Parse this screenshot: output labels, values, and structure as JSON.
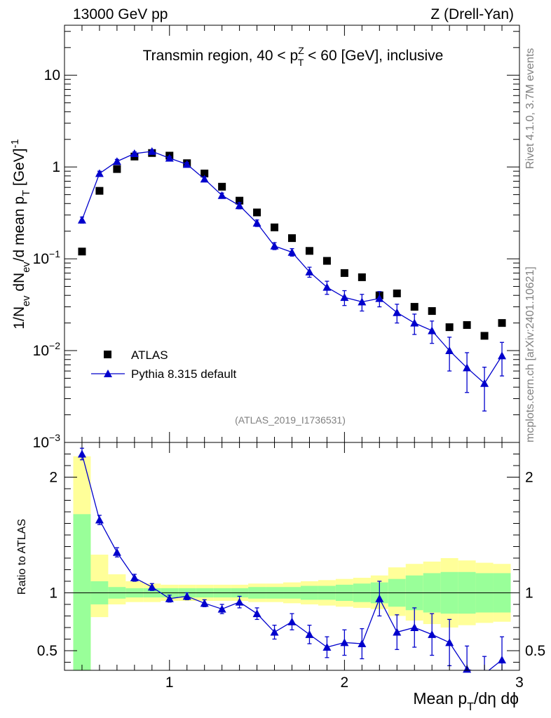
{
  "header": {
    "left": "13000 GeV pp",
    "right": "Z (Drell-Yan)"
  },
  "side": {
    "rivet": "Rivet 4.1.0,  3.7M events",
    "mcplots": "mcplots.cern.ch [arXiv:2401.10621]"
  },
  "chart_data": [
    {
      "type": "scatter",
      "panel": "main",
      "title": "Transmin region, 40 < p_T^Z < 60 [GeV], inclusive",
      "title_parts": [
        "Transmin region, 40 < p",
        "Z",
        "T",
        " < 60 [GeV], inclusive"
      ],
      "watermark": "(ATLAS_2019_I1736531)",
      "ylabel": "1/N_ev dN_ev/d mean p_T [GeV]^-1",
      "ylabel_parts": [
        "1/N",
        "ev",
        " dN",
        "ev",
        "/d mean p",
        "T",
        " [GeV]",
        "-1"
      ],
      "yscale": "log",
      "ylim": [
        0.001,
        35
      ],
      "xlim": [
        0.4,
        3.0
      ],
      "yticks": [
        {
          "value": 10,
          "label": "10"
        },
        {
          "value": 1,
          "label": "1"
        },
        {
          "value": 0.1,
          "label": "10",
          "exp": "−1"
        },
        {
          "value": 0.01,
          "label": "10",
          "exp": "−2"
        },
        {
          "value": 0.001,
          "label": "10",
          "exp": "−3"
        }
      ],
      "legend": {
        "position": "bottom-left",
        "entries": [
          {
            "label": "ATLAS",
            "marker": "square"
          },
          {
            "label": "Pythia 8.315 default",
            "marker": "triangle-line"
          }
        ]
      },
      "x": [
        0.5,
        0.6,
        0.7,
        0.8,
        0.9,
        1.0,
        1.1,
        1.2,
        1.3,
        1.4,
        1.5,
        1.6,
        1.7,
        1.8,
        1.9,
        2.0,
        2.1,
        2.2,
        2.3,
        2.4,
        2.5,
        2.6,
        2.7,
        2.8,
        2.9
      ],
      "series": [
        {
          "name": "ATLAS",
          "color": "#000000",
          "values": [
            0.12,
            0.55,
            0.95,
            1.3,
            1.42,
            1.33,
            1.1,
            0.85,
            0.61,
            0.43,
            0.32,
            0.22,
            0.168,
            0.122,
            0.095,
            0.07,
            0.063,
            0.04,
            0.042,
            0.03,
            0.027,
            0.018,
            0.019,
            0.0145,
            0.02
          ]
        },
        {
          "name": "Pythia 8.315 default",
          "color": "#0000cc",
          "values": [
            0.265,
            0.85,
            1.15,
            1.4,
            1.48,
            1.25,
            1.07,
            0.74,
            0.49,
            0.38,
            0.245,
            0.138,
            0.118,
            0.072,
            0.049,
            0.038,
            0.034,
            0.037,
            0.026,
            0.02,
            0.0165,
            0.01,
            0.0065,
            0.0044,
            0.0088
          ],
          "err_low": [
            0.02,
            0.05,
            0.06,
            0.06,
            0.06,
            0.05,
            0.05,
            0.04,
            0.03,
            0.03,
            0.02,
            0.012,
            0.011,
            0.009,
            0.008,
            0.007,
            0.007,
            0.007,
            0.006,
            0.005,
            0.0045,
            0.004,
            0.003,
            0.0022,
            0.0035
          ],
          "err_high": [
            0.02,
            0.05,
            0.06,
            0.06,
            0.06,
            0.05,
            0.05,
            0.04,
            0.03,
            0.03,
            0.02,
            0.012,
            0.011,
            0.009,
            0.008,
            0.007,
            0.007,
            0.007,
            0.006,
            0.005,
            0.0045,
            0.004,
            0.003,
            0.0022,
            0.0035
          ]
        }
      ]
    },
    {
      "type": "line",
      "panel": "ratio",
      "ylabel": "Ratio to ATLAS",
      "xlabel": "Mean p_T/dη dϕ",
      "xlabel_parts": [
        "Mean p",
        "T",
        "/dη dϕ"
      ],
      "xlim": [
        0.4,
        3.0
      ],
      "ylim": [
        0.33,
        2.3
      ],
      "xticks": [
        1,
        2,
        3
      ],
      "yticks": [
        0.5,
        1,
        2
      ],
      "reference_line": 1,
      "bins": [
        0.45,
        0.55,
        0.65,
        0.75,
        0.85,
        0.95,
        1.05,
        1.15,
        1.25,
        1.35,
        1.45,
        1.55,
        1.65,
        1.75,
        1.85,
        1.95,
        2.05,
        2.15,
        2.25,
        2.35,
        2.45,
        2.55,
        2.65,
        2.75,
        2.85,
        2.95
      ],
      "band_yellow_low": [
        0.0,
        0.79,
        0.9,
        0.92,
        0.92,
        0.93,
        0.93,
        0.93,
        0.93,
        0.93,
        0.92,
        0.92,
        0.91,
        0.9,
        0.89,
        0.88,
        0.87,
        0.86,
        0.8,
        0.76,
        0.73,
        0.7,
        0.72,
        0.74,
        0.75
      ],
      "band_yellow_high": [
        2.18,
        1.33,
        1.16,
        1.1,
        1.08,
        1.07,
        1.07,
        1.07,
        1.07,
        1.07,
        1.08,
        1.08,
        1.09,
        1.1,
        1.11,
        1.12,
        1.13,
        1.15,
        1.22,
        1.25,
        1.27,
        1.3,
        1.28,
        1.26,
        1.25
      ],
      "band_green_low": [
        0.0,
        0.9,
        0.95,
        0.96,
        0.96,
        0.96,
        0.96,
        0.96,
        0.96,
        0.96,
        0.95,
        0.95,
        0.95,
        0.94,
        0.94,
        0.93,
        0.92,
        0.91,
        0.88,
        0.85,
        0.83,
        0.82,
        0.82,
        0.83,
        0.83
      ],
      "band_green_high": [
        1.68,
        1.1,
        1.05,
        1.04,
        1.04,
        1.04,
        1.04,
        1.04,
        1.04,
        1.04,
        1.05,
        1.05,
        1.05,
        1.06,
        1.06,
        1.07,
        1.08,
        1.09,
        1.12,
        1.15,
        1.17,
        1.18,
        1.18,
        1.17,
        1.17
      ],
      "x": [
        0.5,
        0.6,
        0.7,
        0.8,
        0.9,
        1.0,
        1.1,
        1.2,
        1.3,
        1.4,
        1.5,
        1.6,
        1.7,
        1.8,
        1.9,
        2.0,
        2.1,
        2.2,
        2.3,
        2.4,
        2.5,
        2.6,
        2.7,
        2.8,
        2.9
      ],
      "series": [
        {
          "name": "Pythia 8.315 default / ATLAS",
          "color": "#0000cc",
          "values": [
            2.2,
            1.63,
            1.35,
            1.13,
            1.05,
            0.95,
            0.97,
            0.91,
            0.86,
            0.92,
            0.82,
            0.66,
            0.75,
            0.64,
            0.53,
            0.57,
            0.56,
            0.95,
            0.66,
            0.7,
            0.64,
            0.57,
            0.34,
            0.3,
            0.42
          ],
          "err": [
            0.05,
            0.04,
            0.04,
            0.03,
            0.03,
            0.03,
            0.03,
            0.03,
            0.04,
            0.05,
            0.05,
            0.06,
            0.07,
            0.08,
            0.09,
            0.11,
            0.13,
            0.15,
            0.15,
            0.17,
            0.18,
            0.2,
            0.2,
            0.15,
            0.2
          ]
        }
      ]
    }
  ]
}
